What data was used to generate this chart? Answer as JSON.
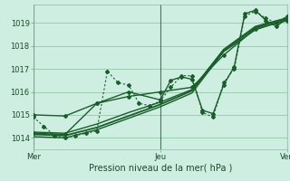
{
  "xlabel": "Pression niveau de la mer( hPa )",
  "background_color": "#cdeee0",
  "grid_color": "#8abfa0",
  "line_color": "#1a5c2a",
  "ylim": [
    1013.5,
    1019.8
  ],
  "xlim": [
    0,
    48
  ],
  "xticks": [
    0,
    24,
    48
  ],
  "xticklabels": [
    "Mer",
    "Jeu",
    "Ven"
  ],
  "yticks": [
    1014,
    1015,
    1016,
    1017,
    1018,
    1019
  ],
  "lines": [
    {
      "x": [
        0,
        2,
        4,
        6,
        8,
        10,
        12,
        14,
        16,
        18,
        20,
        22,
        24,
        26,
        28,
        30,
        32,
        34,
        36,
        38,
        40,
        42,
        44,
        46,
        48
      ],
      "y": [
        1014.9,
        1014.5,
        1014.1,
        1014.0,
        1014.1,
        1014.2,
        1014.3,
        1016.9,
        1016.4,
        1016.3,
        1015.5,
        1015.4,
        1015.6,
        1016.2,
        1016.7,
        1016.7,
        1015.1,
        1014.9,
        1016.4,
        1017.0,
        1019.3,
        1019.5,
        1019.2,
        1019.0,
        1019.3
      ],
      "style": "dotted",
      "marker": "D",
      "markersize": 2.0,
      "linewidth": 0.8
    },
    {
      "x": [
        0,
        6,
        12,
        18,
        24,
        30,
        36,
        42,
        48
      ],
      "y": [
        1014.15,
        1014.1,
        1014.45,
        1014.95,
        1015.45,
        1016.05,
        1017.8,
        1018.8,
        1019.2
      ],
      "style": "solid",
      "marker": null,
      "markersize": 0,
      "linewidth": 1.3
    },
    {
      "x": [
        0,
        6,
        12,
        18,
        24,
        30,
        36,
        42,
        48
      ],
      "y": [
        1014.25,
        1014.2,
        1014.6,
        1015.1,
        1015.55,
        1016.1,
        1017.85,
        1018.85,
        1019.22
      ],
      "style": "solid",
      "marker": null,
      "markersize": 0,
      "linewidth": 1.0
    },
    {
      "x": [
        0,
        6,
        12,
        18,
        24,
        30,
        36,
        42,
        48
      ],
      "y": [
        1014.05,
        1014.0,
        1014.35,
        1014.85,
        1015.35,
        1015.95,
        1017.75,
        1018.7,
        1019.15
      ],
      "style": "solid",
      "marker": null,
      "markersize": 0,
      "linewidth": 1.0
    },
    {
      "x": [
        0,
        6,
        12,
        18,
        24,
        30,
        36,
        42,
        48
      ],
      "y": [
        1015.0,
        1014.95,
        1015.5,
        1015.8,
        1016.0,
        1016.2,
        1017.6,
        1018.75,
        1019.1
      ],
      "style": "solid",
      "marker": "D",
      "markersize": 2.0,
      "linewidth": 1.0
    },
    {
      "x": [
        0,
        6,
        12,
        18,
        24,
        26,
        28,
        30,
        32,
        34,
        36,
        38,
        40,
        42,
        44,
        46,
        48
      ],
      "y": [
        1014.2,
        1014.15,
        1015.5,
        1016.0,
        1015.65,
        1016.5,
        1016.65,
        1016.55,
        1015.2,
        1015.05,
        1016.3,
        1017.1,
        1019.4,
        1019.55,
        1019.1,
        1018.85,
        1019.2
      ],
      "style": "solid",
      "marker": "D",
      "markersize": 2.0,
      "linewidth": 1.0
    }
  ]
}
